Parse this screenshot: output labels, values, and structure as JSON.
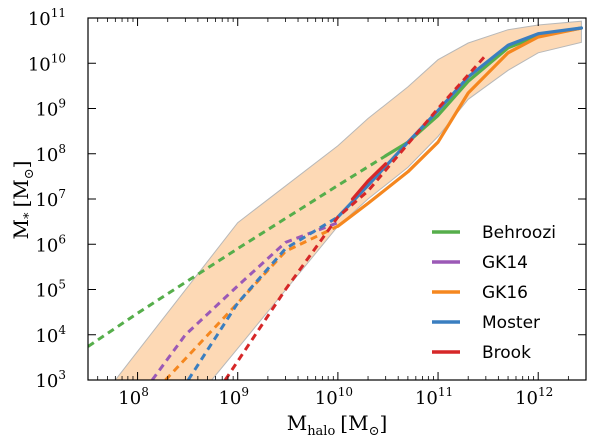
{
  "chart_data": {
    "type": "line",
    "x_scale": "log",
    "y_scale": "log",
    "xlim": [
      32000000.0,
      3000000000000.0
    ],
    "ylim": [
      1000.0,
      100000000000.0
    ],
    "xlabel": {
      "main": "M",
      "sub": "halo",
      "unit": "[M",
      "unit_sub": "⊙",
      "close": "]"
    },
    "ylabel": {
      "main": "M",
      "sub": "*",
      "unit": "[M",
      "unit_sub": "⊙",
      "close": "]"
    },
    "x_ticks": [
      {
        "base": "10",
        "exp": "8",
        "value": 100000000.0
      },
      {
        "base": "10",
        "exp": "9",
        "value": 1000000000.0
      },
      {
        "base": "10",
        "exp": "10",
        "value": 10000000000.0
      },
      {
        "base": "10",
        "exp": "11",
        "value": 100000000000.0
      },
      {
        "base": "10",
        "exp": "12",
        "value": 1000000000000.0
      }
    ],
    "y_ticks": [
      {
        "base": "10",
        "exp": "3",
        "value": 1000.0
      },
      {
        "base": "10",
        "exp": "4",
        "value": 10000.0
      },
      {
        "base": "10",
        "exp": "5",
        "value": 100000.0
      },
      {
        "base": "10",
        "exp": "6",
        "value": 1000000.0
      },
      {
        "base": "10",
        "exp": "7",
        "value": 10000000.0
      },
      {
        "base": "10",
        "exp": "8",
        "value": 100000000.0
      },
      {
        "base": "10",
        "exp": "9",
        "value": 1000000000.0
      },
      {
        "base": "10",
        "exp": "10",
        "value": 10000000000.0
      },
      {
        "base": "10",
        "exp": "11",
        "value": 100000000000.0
      }
    ],
    "legend_position": "lower-right",
    "band": {
      "color": "#fdd9b5",
      "edge": "#b8b8b8",
      "upper": [
        [
          60000000.0,
          1000.0
        ],
        [
          1000000000.0,
          3000000.0
        ],
        [
          10000000000.0,
          150000000.0
        ],
        [
          20000000000.0,
          600000000.0
        ],
        [
          50000000000.0,
          3000000000.0
        ],
        [
          100000000000.0,
          12000000000.0
        ],
        [
          200000000000.0,
          28000000000.0
        ],
        [
          500000000000.0,
          55000000000.0
        ],
        [
          1000000000000.0,
          70000000000.0
        ],
        [
          2700000000000.0,
          85000000000.0
        ]
      ],
      "lower": [
        [
          2700000000000.0,
          29000000000.0
        ],
        [
          1000000000000.0,
          17000000000.0
        ],
        [
          500000000000.0,
          7000000000.0
        ],
        [
          200000000000.0,
          1600000000.0
        ],
        [
          100000000000.0,
          240000000.0
        ],
        [
          50000000000.0,
          50000000.0
        ],
        [
          20000000000.0,
          10000000.0
        ],
        [
          10000000000.0,
          2500000.0
        ],
        [
          1000000000.0,
          5000.0
        ],
        [
          550000000.0,
          1000.0
        ]
      ]
    },
    "series": [
      {
        "name": "Behroozi",
        "color": "#56ae4b",
        "dashed": [
          [
            32000000.0,
            5500.0
          ],
          [
            100000000.0,
            30000.0
          ],
          [
            1000000000.0,
            800000.0
          ],
          [
            10000000000.0,
            20000000.0
          ],
          [
            30000000000.0,
            90000000.0
          ]
        ],
        "solid": [
          [
            30000000000.0,
            90000000.0
          ],
          [
            50000000000.0,
            180000000.0
          ],
          [
            100000000000.0,
            700000000.0
          ],
          [
            200000000000.0,
            4000000000.0
          ],
          [
            500000000000.0,
            22000000000.0
          ],
          [
            1000000000000.0,
            40000000000.0
          ],
          [
            2700000000000.0,
            60000000000.0
          ]
        ]
      },
      {
        "name": "GK14",
        "color": "#9b59b6",
        "dashed": [
          [
            140000000.0,
            1000.0
          ],
          [
            300000000.0,
            10000.0
          ],
          [
            1000000000.0,
            120000.0
          ],
          [
            3000000000.0,
            1100000.0
          ],
          [
            10000000000.0,
            3000000.0
          ]
        ],
        "solid": []
      },
      {
        "name": "GK16",
        "color": "#f5871f",
        "dashed": [
          [
            190000000.0,
            1000.0
          ],
          [
            1000000000.0,
            50000.0
          ],
          [
            3000000000.0,
            700000.0
          ],
          [
            10000000000.0,
            2500000.0
          ]
        ],
        "solid": [
          [
            10000000000.0,
            2500000.0
          ],
          [
            20000000000.0,
            8000000.0
          ],
          [
            50000000000.0,
            40000000.0
          ],
          [
            100000000000.0,
            180000000.0
          ],
          [
            200000000000.0,
            2200000000.0
          ],
          [
            500000000000.0,
            17000000000.0
          ],
          [
            1000000000000.0,
            38000000000.0
          ],
          [
            2700000000000.0,
            60000000000.0
          ]
        ]
      },
      {
        "name": "Moster",
        "color": "#3a7ec0",
        "dashed": [
          [
            320000000.0,
            1000.0
          ],
          [
            1000000000.0,
            50000.0
          ],
          [
            3000000000.0,
            800000.0
          ],
          [
            10000000000.0,
            4000000.0
          ]
        ],
        "solid": [
          [
            10000000000.0,
            4000000.0
          ],
          [
            20000000000.0,
            20000000.0
          ],
          [
            50000000000.0,
            180000000.0
          ],
          [
            100000000000.0,
            900000000.0
          ],
          [
            200000000000.0,
            5000000000.0
          ],
          [
            500000000000.0,
            25000000000.0
          ],
          [
            1000000000000.0,
            45000000000.0
          ],
          [
            2700000000000.0,
            60000000000.0
          ]
        ]
      },
      {
        "name": "Brook",
        "color": "#d62728",
        "dashed": [
          [
            750000000.0,
            1000.0
          ],
          [
            3000000000.0,
            100000.0
          ],
          [
            10000000000.0,
            4000000.0
          ],
          [
            20000000000.0,
            15000000.0
          ],
          [
            100000000000.0,
            1000000000.0
          ],
          [
            300000000000.0,
            15000000000.0
          ]
        ],
        "solid": [
          [
            14000000000.0,
            10000000.0
          ],
          [
            20000000000.0,
            25000000.0
          ],
          [
            30000000000.0,
            60000000.0
          ]
        ]
      }
    ]
  }
}
